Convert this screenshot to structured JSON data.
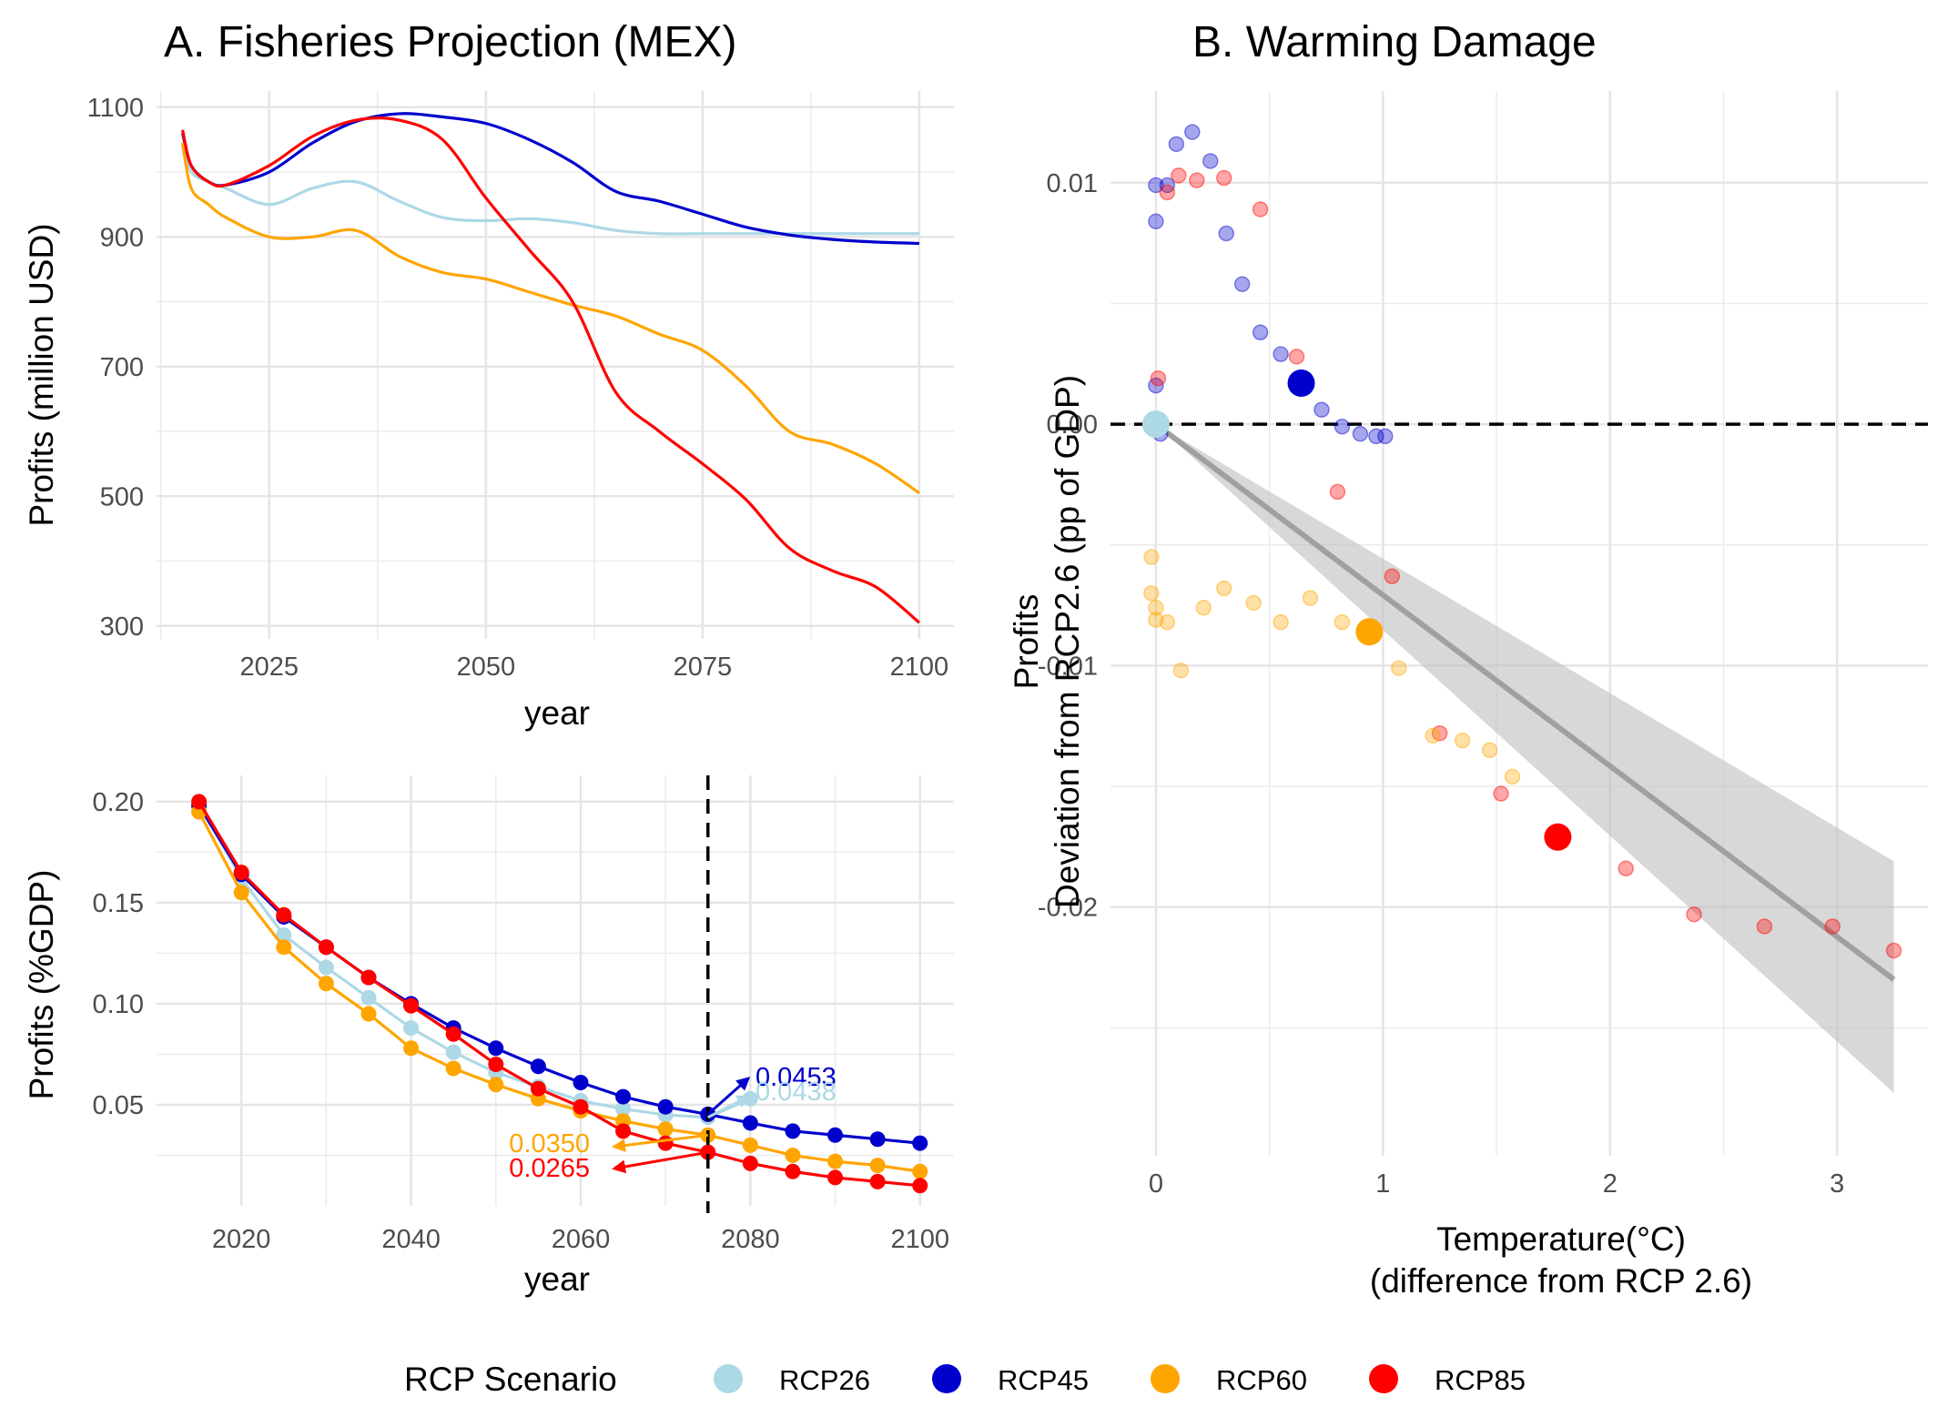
{
  "colors": {
    "RCP26": "#ADD8E6",
    "RCP45": "#0000CD",
    "RCP60": "#FFA500",
    "RCP85": "#FF0000",
    "ribbon": "#BEBEBE",
    "fit_line": "#A0A0A0"
  },
  "legend": {
    "title": "RCP Scenario",
    "items": [
      {
        "key": "RCP26",
        "label": "RCP26"
      },
      {
        "key": "RCP45",
        "label": "RCP45"
      },
      {
        "key": "RCP60",
        "label": "RCP60"
      },
      {
        "key": "RCP85",
        "label": "RCP85"
      }
    ]
  },
  "chart_data": [
    {
      "type": "line",
      "title": "A. Fisheries Projection (MEX)",
      "xlabel": "year",
      "ylabel": "Profits (million USD)",
      "xlim": [
        2012,
        2104
      ],
      "ylim": [
        280,
        1125
      ],
      "xticks": [
        2025,
        2050,
        2075,
        2100
      ],
      "yticks": [
        300,
        500,
        700,
        900,
        1100
      ],
      "grid": true,
      "x": [
        2015,
        2016,
        2018,
        2020,
        2025,
        2030,
        2035,
        2040,
        2045,
        2050,
        2055,
        2060,
        2065,
        2070,
        2075,
        2080,
        2085,
        2090,
        2095,
        2100
      ],
      "series": [
        {
          "name": "RCP26",
          "values": [
            1040,
            1000,
            985,
            975,
            950,
            975,
            985,
            955,
            930,
            925,
            928,
            922,
            910,
            905,
            905,
            905,
            905,
            905,
            905,
            905
          ]
        },
        {
          "name": "RCP45",
          "values": [
            1060,
            1010,
            985,
            980,
            1000,
            1045,
            1078,
            1090,
            1085,
            1075,
            1050,
            1015,
            970,
            955,
            935,
            915,
            903,
            896,
            892,
            890
          ]
        },
        {
          "name": "RCP60",
          "values": [
            1045,
            975,
            950,
            930,
            900,
            900,
            910,
            870,
            845,
            835,
            815,
            795,
            778,
            750,
            725,
            670,
            600,
            580,
            550,
            505
          ]
        },
        {
          "name": "RCP85",
          "values": [
            1065,
            1010,
            985,
            980,
            1010,
            1055,
            1080,
            1080,
            1050,
            960,
            880,
            800,
            660,
            600,
            550,
            495,
            420,
            385,
            360,
            305
          ]
        }
      ]
    },
    {
      "type": "line",
      "title": "",
      "xlabel": "year",
      "ylabel": "Profits (%GDP)",
      "xlim": [
        2010,
        2104
      ],
      "ylim": [
        0.0,
        0.213
      ],
      "xticks": [
        2020,
        2040,
        2060,
        2080,
        2100
      ],
      "yticks": [
        0.05,
        0.1,
        0.15,
        0.2
      ],
      "ytick_labels": [
        "0.05",
        "0.10",
        "0.15",
        "0.20"
      ],
      "grid": true,
      "vline": 2075,
      "x": [
        2015,
        2020,
        2025,
        2030,
        2035,
        2040,
        2045,
        2050,
        2055,
        2060,
        2065,
        2070,
        2075,
        2080,
        2085,
        2090,
        2095,
        2100
      ],
      "series": [
        {
          "name": "RCP26",
          "values": [
            0.199,
            0.162,
            0.134,
            0.118,
            0.103,
            0.088,
            0.076,
            0.066,
            0.059,
            0.052,
            0.048,
            0.045,
            0.0438,
            0.053,
            null,
            null,
            null,
            null
          ]
        },
        {
          "name": "RCP45",
          "values": [
            0.198,
            0.164,
            0.143,
            0.128,
            0.113,
            0.1,
            0.088,
            0.078,
            0.069,
            0.061,
            0.054,
            0.049,
            0.0453,
            0.041,
            0.037,
            0.035,
            0.033,
            0.031
          ]
        },
        {
          "name": "RCP60",
          "values": [
            0.195,
            0.155,
            0.128,
            0.11,
            0.095,
            0.078,
            0.068,
            0.06,
            0.053,
            0.047,
            0.042,
            0.038,
            0.035,
            0.03,
            0.025,
            0.022,
            0.02,
            0.017
          ]
        },
        {
          "name": "RCP85",
          "values": [
            0.2,
            0.165,
            0.144,
            0.128,
            0.113,
            0.099,
            0.085,
            0.07,
            0.058,
            0.049,
            0.037,
            0.031,
            0.0265,
            0.021,
            0.017,
            0.014,
            0.012,
            0.01
          ]
        }
      ],
      "annotations": [
        {
          "series": "RCP45",
          "text": "0.0453"
        },
        {
          "series": "RCP26",
          "text": "0.0438"
        },
        {
          "series": "RCP60",
          "text": "0.0350"
        },
        {
          "series": "RCP85",
          "text": "0.0265"
        }
      ]
    },
    {
      "type": "scatter",
      "title": "B. Warming Damage",
      "xlabel_lines": [
        "Temperature(°C)",
        "(difference from RCP 2.6)"
      ],
      "ylabel_lines": [
        "Profits",
        "Deviation from RCP2.6 (pp of GDP)"
      ],
      "xlim": [
        -0.2,
        3.4
      ],
      "ylim": [
        -0.0303,
        0.0138
      ],
      "xticks": [
        0,
        1,
        2,
        3
      ],
      "yticks": [
        -0.02,
        -0.01,
        0.0,
        0.01
      ],
      "ytick_labels": [
        "-0.02",
        "-0.01",
        "0.00",
        "0.01"
      ],
      "grid": true,
      "hline": 0.0,
      "fit": {
        "x": [
          0,
          3.25
        ],
        "y": [
          0,
          -0.023
        ],
        "ribbon_lower_end": -0.0277,
        "ribbon_upper_end": -0.0181
      },
      "points": [
        {
          "series": "RCP45",
          "x": [
            0,
            0,
            0,
            0.02,
            0.05,
            0.09,
            0.16,
            0.24,
            0.31,
            0.38,
            0.46,
            0.55,
            0.66,
            0.73,
            0.82,
            0.9,
            0.97,
            1.01
          ],
          "y": [
            0.0084,
            0.0099,
            0.0016,
            -0.0004,
            0.0099,
            0.0116,
            0.0121,
            0.0109,
            0.0079,
            0.0058,
            0.0038,
            0.0029,
            0.0018,
            0.0006,
            -0.0001,
            -0.0004,
            -0.0005,
            -0.0005
          ]
        },
        {
          "series": "RCP85",
          "x": [
            0.01,
            0.05,
            0.1,
            0.18,
            0.3,
            0.46,
            0.62,
            0.8,
            1.04,
            1.25,
            1.52,
            2.07,
            2.37,
            2.68,
            2.98,
            3.25
          ],
          "y": [
            0.0019,
            0.0096,
            0.0103,
            0.0101,
            0.0102,
            0.0089,
            0.0028,
            -0.0028,
            -0.0063,
            -0.0128,
            -0.0153,
            -0.0184,
            -0.0203,
            -0.0208,
            -0.0208,
            -0.0218
          ]
        },
        {
          "series": "RCP60",
          "x": [
            -0.02,
            -0.02,
            0.0,
            0.0,
            0.05,
            0.11,
            0.21,
            0.3,
            0.43,
            0.55,
            0.68,
            0.82,
            0.95,
            1.07,
            1.22,
            1.35,
            1.47,
            1.57
          ],
          "y": [
            -0.0055,
            -0.007,
            -0.0076,
            -0.0081,
            -0.0082,
            -0.0102,
            -0.0076,
            -0.0068,
            -0.0074,
            -0.0082,
            -0.0072,
            -0.0082,
            -0.0086,
            -0.0101,
            -0.0129,
            -0.0131,
            -0.0135,
            -0.0146
          ]
        }
      ],
      "summary_points": [
        {
          "series": "RCP26",
          "x": 0.0,
          "y": 0.0
        },
        {
          "series": "RCP45",
          "x": 0.64,
          "y": 0.0017
        },
        {
          "series": "RCP60",
          "x": 0.94,
          "y": -0.0086
        },
        {
          "series": "RCP85",
          "x": 1.77,
          "y": -0.0171
        }
      ]
    }
  ]
}
